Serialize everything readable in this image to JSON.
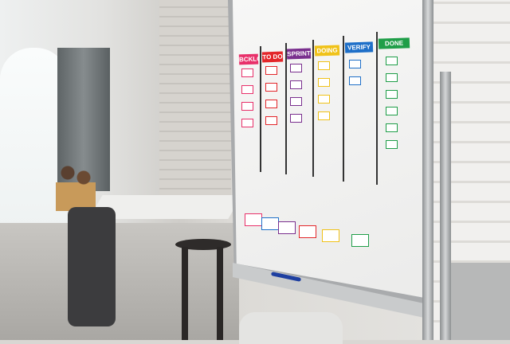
{
  "board": {
    "columns": [
      {
        "label": "BCKLG",
        "color": "#e8306a"
      },
      {
        "label": "TO DO",
        "color": "#e3262a"
      },
      {
        "label": "SPRINT",
        "color": "#7a2f8e"
      },
      {
        "label": "DOING",
        "color": "#f0c219"
      },
      {
        "label": "VERIFY",
        "color": "#1e6fc8"
      },
      {
        "label": "DONE",
        "color": "#1f9e48"
      }
    ]
  }
}
